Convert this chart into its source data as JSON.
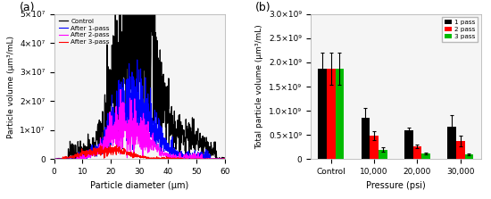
{
  "panel_a": {
    "title": "(a)",
    "xlabel": "Particle diameter (μm)",
    "ylabel": "Particle volume (μm³/mL)",
    "xlim": [
      0,
      60
    ],
    "ylim": [
      0,
      50000000.0
    ],
    "ytick_vals": [
      0,
      10000000.0,
      20000000.0,
      30000000.0,
      40000000.0,
      50000000.0
    ],
    "ytick_labels": [
      "0",
      "1×10⁷",
      "2×10⁷",
      "3×10⁷",
      "4×10⁷",
      "5×10⁷"
    ],
    "xticks": [
      0,
      10,
      20,
      30,
      40,
      50,
      60
    ],
    "lines": {
      "Control": {
        "color": "#000000",
        "lw": 0.9
      },
      "After 1-pass": {
        "color": "#0000ff",
        "lw": 0.8
      },
      "After 2-pass": {
        "color": "#ff00ff",
        "lw": 0.8
      },
      "After 3-pass": {
        "color": "#ff0000",
        "lw": 0.8
      }
    }
  },
  "panel_b": {
    "title": "(b)",
    "xlabel": "Pressure (psi)",
    "ylabel": "Total particle volume (μm³/mL)",
    "ylim": [
      0,
      3000000000.0
    ],
    "ytick_vals": [
      0,
      500000000.0,
      1000000000.0,
      1500000000.0,
      2000000000.0,
      2500000000.0,
      3000000000.0
    ],
    "ytick_labels": [
      "0",
      "0.5×10⁹",
      "1.0×10⁹",
      "1.5×10⁹",
      "2.0×10⁹",
      "2.5×10⁹",
      "3.0×10⁹"
    ],
    "categories": [
      "Control",
      "10,000",
      "20,000",
      "30,000"
    ],
    "pass_labels": [
      "1 pass",
      "2 pass",
      "3 pass"
    ],
    "bar_colors": [
      "#000000",
      "#ff0000",
      "#00bb00"
    ],
    "bar_values": [
      [
        1870000000.0,
        1870000000.0,
        1870000000.0
      ],
      [
        850000000.0,
        480000000.0,
        200000000.0
      ],
      [
        600000000.0,
        270000000.0,
        120000000.0
      ],
      [
        670000000.0,
        370000000.0,
        100000000.0
      ]
    ],
    "bar_errors": [
      [
        330000000.0,
        330000000.0,
        330000000.0
      ],
      [
        200000000.0,
        90000000.0,
        40000000.0
      ],
      [
        60000000.0,
        40000000.0,
        20000000.0
      ],
      [
        240000000.0,
        110000000.0,
        20000000.0
      ]
    ]
  }
}
